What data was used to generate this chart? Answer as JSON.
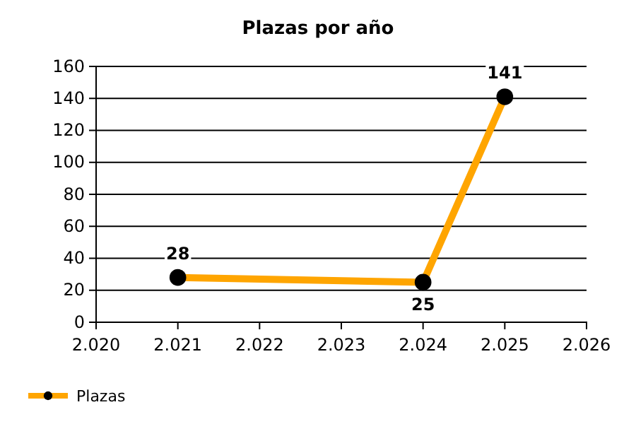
{
  "chart_data": {
    "type": "line",
    "title": "Plazas por año",
    "x": [
      2021,
      2024,
      2025
    ],
    "series": [
      {
        "name": "Plazas",
        "color": "#ffa500",
        "values": [
          28,
          25,
          141
        ]
      }
    ],
    "xlim": [
      2020,
      2026
    ],
    "xticks": [
      {
        "value": 2020,
        "label": "2.020"
      },
      {
        "value": 2021,
        "label": "2.021"
      },
      {
        "value": 2022,
        "label": "2.022"
      },
      {
        "value": 2023,
        "label": "2.023"
      },
      {
        "value": 2024,
        "label": "2.024"
      },
      {
        "value": 2025,
        "label": "2.025"
      },
      {
        "value": 2026,
        "label": "2.026"
      }
    ],
    "ylim": [
      0,
      160
    ],
    "yticks": [
      0,
      20,
      40,
      60,
      80,
      100,
      120,
      140,
      160
    ],
    "grid": "y",
    "legend": "bottom left",
    "marker": "circle",
    "line_style": "solid",
    "data_labels": true
  }
}
